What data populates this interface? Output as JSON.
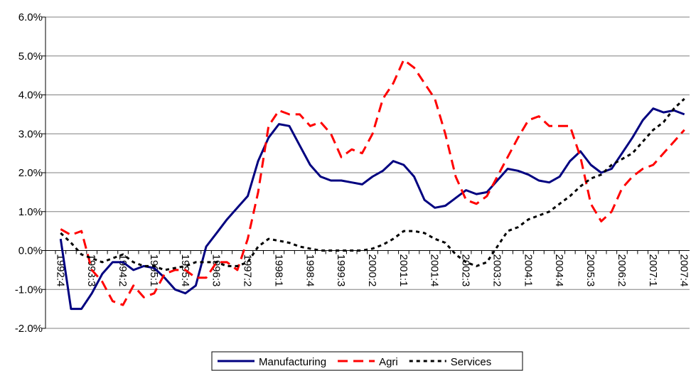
{
  "chart_data": {
    "type": "line",
    "categories": [
      "1992:4",
      null,
      null,
      "1993:3",
      null,
      null,
      "1994:2",
      null,
      null,
      "1995:1",
      null,
      null,
      "1995:4",
      null,
      null,
      "1996:3",
      null,
      null,
      "1997:2",
      null,
      null,
      "1998:1",
      null,
      null,
      "1998:4",
      null,
      null,
      "1999:3",
      null,
      null,
      "2000:2",
      null,
      null,
      "2001:1",
      null,
      null,
      "2001:4",
      null,
      null,
      "2002:3",
      null,
      null,
      "2003:2",
      null,
      null,
      "2004:1",
      null,
      null,
      "2004:4",
      null,
      null,
      "2005:3",
      null,
      null,
      "2006:2",
      null,
      null,
      "2007:1",
      null,
      null,
      "2007:4"
    ],
    "series": [
      {
        "name": "Manufacturing",
        "color": "#000080",
        "dash": "solid",
        "values": [
          0.3,
          -1.5,
          -1.5,
          -1.1,
          -0.6,
          -0.3,
          -0.3,
          -0.5,
          -0.4,
          -0.45,
          -0.7,
          -1.0,
          -1.1,
          -0.9,
          0.1,
          0.45,
          0.8,
          1.1,
          1.4,
          2.3,
          2.9,
          3.25,
          3.2,
          2.7,
          2.2,
          1.9,
          1.8,
          1.8,
          1.75,
          1.7,
          1.9,
          2.05,
          2.3,
          2.2,
          1.9,
          1.3,
          1.1,
          1.15,
          1.35,
          1.55,
          1.45,
          1.5,
          1.8,
          2.1,
          2.05,
          1.95,
          1.8,
          1.75,
          1.9,
          2.3,
          2.55,
          2.2,
          2.0,
          2.1,
          2.5,
          2.9,
          3.35,
          3.65,
          3.55,
          3.6,
          3.5
        ]
      },
      {
        "name": "Agri",
        "color": "#ff0000",
        "dash": "long",
        "values": [
          0.55,
          0.4,
          0.5,
          -0.5,
          -0.8,
          -1.3,
          -1.4,
          -0.9,
          -1.2,
          -1.1,
          -0.6,
          -0.5,
          -0.5,
          -0.7,
          -0.7,
          -0.3,
          -0.3,
          -0.5,
          0.3,
          1.5,
          3.2,
          3.6,
          3.5,
          3.5,
          3.2,
          3.3,
          3.0,
          2.4,
          2.6,
          2.5,
          3.0,
          3.9,
          4.3,
          4.9,
          4.7,
          4.3,
          3.9,
          3.0,
          1.9,
          1.3,
          1.2,
          1.4,
          1.9,
          2.4,
          2.9,
          3.35,
          3.45,
          3.2,
          3.2,
          3.2,
          2.4,
          1.2,
          0.75,
          1.0,
          1.6,
          1.9,
          2.1,
          2.2,
          2.5,
          2.8,
          3.1
        ]
      },
      {
        "name": "Services",
        "color": "#000000",
        "dash": "short",
        "values": [
          0.45,
          0.2,
          -0.1,
          -0.2,
          -0.3,
          -0.2,
          -0.1,
          -0.3,
          -0.4,
          -0.4,
          -0.5,
          -0.45,
          -0.4,
          -0.3,
          -0.3,
          -0.3,
          -0.4,
          -0.4,
          -0.3,
          0.1,
          0.3,
          0.25,
          0.2,
          0.1,
          0.05,
          0,
          0,
          0,
          0,
          0,
          0.05,
          0.15,
          0.3,
          0.5,
          0.5,
          0.45,
          0.3,
          0.2,
          -0.1,
          -0.3,
          -0.4,
          -0.3,
          0.1,
          0.5,
          0.6,
          0.8,
          0.9,
          1.0,
          1.2,
          1.4,
          1.65,
          1.85,
          1.95,
          2.2,
          2.35,
          2.5,
          2.8,
          3.1,
          3.3,
          3.65,
          3.9
        ]
      }
    ],
    "ylim": [
      -2,
      6
    ],
    "yticks": [
      {
        "value": -2,
        "label": "-2.0%"
      },
      {
        "value": -1,
        "label": "-1.0%"
      },
      {
        "value": 0,
        "label": "0.0%"
      },
      {
        "value": 1,
        "label": "1.0%"
      },
      {
        "value": 2,
        "label": "2.0%"
      },
      {
        "value": 3,
        "label": "3.0%"
      },
      {
        "value": 4,
        "label": "4.0%"
      },
      {
        "value": 5,
        "label": "5.0%"
      },
      {
        "value": 6,
        "label": "6.0%"
      }
    ],
    "grid": true,
    "legend": "bottom"
  }
}
